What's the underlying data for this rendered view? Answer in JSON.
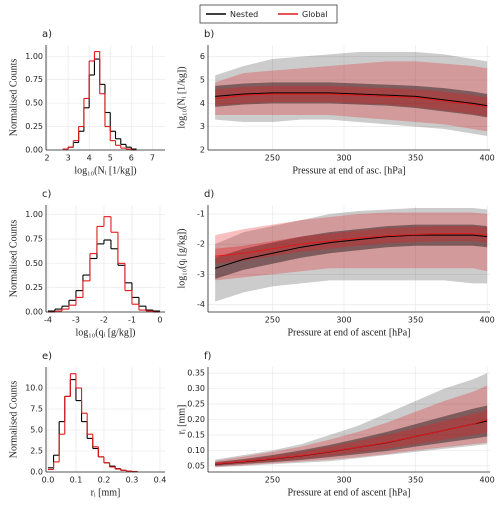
{
  "chart_data": [
    {
      "type": "histogram",
      "label": "a)",
      "xlabel": "log₁₀(Nᵢ [1/kg])",
      "ylabel": "Normalised Counts",
      "xlim": [
        1.95,
        7.6
      ],
      "ylim": [
        0,
        1.12
      ],
      "xticks": [
        2,
        3,
        4,
        5,
        6,
        7
      ],
      "yticks": [
        {
          "value": 0,
          "label": "0.00"
        },
        {
          "value": 0.25,
          "label": "0.25"
        },
        {
          "value": 0.5,
          "label": "0.50"
        },
        {
          "value": 0.75,
          "label": "0.75"
        },
        {
          "value": 1,
          "label": "1.00"
        }
      ],
      "bins": [
        2.75,
        3,
        3.25,
        3.5,
        3.75,
        4,
        4.25,
        4.5,
        4.75,
        5,
        5.25,
        5.5,
        5.75,
        6,
        6.25
      ],
      "series": [
        {
          "name": "Nested",
          "color": "#000000",
          "values": [
            0.01,
            0.03,
            0.08,
            0.2,
            0.45,
            0.8,
            0.97,
            0.7,
            0.4,
            0.2,
            0.12,
            0.06,
            0.03,
            0.01
          ]
        },
        {
          "name": "Global",
          "color": "#e3191c",
          "values": [
            0.01,
            0.03,
            0.1,
            0.25,
            0.55,
            0.95,
            1.05,
            0.6,
            0.25,
            0.1,
            0.05,
            0.02,
            0.01,
            0
          ]
        }
      ]
    },
    {
      "type": "band",
      "label": "b)",
      "xlabel": "Pressure at end of asc. [hPa]",
      "ylabel": "log₁₀(Nᵢ [1/kg])",
      "xlim": [
        205,
        402
      ],
      "ylim": [
        2,
        6.5
      ],
      "xticks": [
        250,
        300,
        350,
        400
      ],
      "yticks": [
        2,
        3,
        4,
        5,
        6
      ],
      "x": [
        210,
        230,
        250,
        270,
        290,
        310,
        330,
        350,
        370,
        390,
        400
      ],
      "series": [
        {
          "name": "Nested",
          "color": "#000000",
          "values": [
            4.3,
            4.4,
            4.45,
            4.45,
            4.45,
            4.4,
            4.35,
            4.3,
            4.15,
            4.0,
            3.9
          ],
          "inner_low": [
            3.85,
            3.95,
            4.0,
            4.0,
            4.0,
            3.95,
            3.9,
            3.8,
            3.65,
            3.5,
            3.4
          ],
          "inner_high": [
            4.75,
            4.85,
            4.9,
            4.9,
            4.9,
            4.85,
            4.8,
            4.75,
            4.65,
            4.5,
            4.4
          ],
          "outer_low": [
            3.3,
            3.2,
            3.2,
            3.3,
            3.3,
            3.2,
            3.1,
            3.0,
            2.9,
            2.7,
            2.6
          ],
          "outer_high": [
            5.2,
            5.6,
            5.9,
            6.0,
            6.1,
            6.2,
            6.2,
            6.2,
            6.1,
            5.9,
            5.8
          ]
        },
        {
          "name": "Global",
          "color": "#e3191c",
          "values": [
            4.2,
            4.35,
            4.4,
            4.4,
            4.4,
            4.35,
            4.3,
            4.25,
            4.1,
            3.95,
            3.85
          ],
          "inner_low": [
            3.9,
            4.0,
            4.05,
            4.05,
            4.05,
            4.0,
            3.95,
            3.85,
            3.7,
            3.55,
            3.45
          ],
          "inner_high": [
            4.6,
            4.7,
            4.75,
            4.75,
            4.75,
            4.7,
            4.65,
            4.6,
            4.5,
            4.35,
            4.25
          ],
          "outer_low": [
            3.5,
            3.5,
            3.5,
            3.5,
            3.5,
            3.4,
            3.3,
            3.2,
            3.1,
            2.9,
            2.8
          ],
          "outer_high": [
            4.9,
            5.3,
            5.4,
            5.5,
            5.6,
            5.7,
            5.8,
            5.8,
            5.7,
            5.6,
            5.5
          ]
        }
      ]
    },
    {
      "type": "histogram",
      "label": "c)",
      "xlabel": "log₁₀(qᵢ [g/kg])",
      "ylabel": "Normalised Counts",
      "xlim": [
        -4.07,
        0.18
      ],
      "ylim": [
        0,
        1.1
      ],
      "xticks": [
        -4,
        -3,
        -2,
        -1,
        0
      ],
      "yticks": [
        {
          "value": 0,
          "label": "0.00"
        },
        {
          "value": 0.25,
          "label": "0.25"
        },
        {
          "value": 0.5,
          "label": "0.50"
        },
        {
          "value": 0.75,
          "label": "0.75"
        },
        {
          "value": 1,
          "label": "1.00"
        }
      ],
      "bins": [
        -4,
        -3.75,
        -3.5,
        -3.25,
        -3,
        -2.75,
        -2.5,
        -2.25,
        -2,
        -1.75,
        -1.5,
        -1.25,
        -1,
        -0.75,
        -0.5,
        -0.25,
        0
      ],
      "series": [
        {
          "name": "Nested",
          "color": "#000000",
          "values": [
            0.01,
            0.03,
            0.06,
            0.12,
            0.22,
            0.38,
            0.55,
            0.7,
            0.74,
            0.65,
            0.48,
            0.3,
            0.15,
            0.06,
            0.02,
            0.01
          ]
        },
        {
          "name": "Global",
          "color": "#e3191c",
          "values": [
            0,
            0.01,
            0.03,
            0.07,
            0.15,
            0.32,
            0.6,
            0.88,
            0.98,
            0.82,
            0.5,
            0.22,
            0.08,
            0.02,
            0.01,
            0
          ]
        }
      ]
    },
    {
      "type": "band",
      "label": "d)",
      "xlabel": "Pressure at end of ascent [hPa]",
      "ylabel": "log₁₀(qᵢ [g/kg])",
      "xlim": [
        205,
        402
      ],
      "ylim": [
        -4.25,
        -0.7
      ],
      "xticks": [
        250,
        300,
        350,
        400
      ],
      "yticks": [
        -4,
        -3,
        -2,
        -1
      ],
      "x": [
        210,
        230,
        250,
        270,
        290,
        310,
        330,
        350,
        370,
        390,
        400
      ],
      "series": [
        {
          "name": "Nested",
          "color": "#000000",
          "values": [
            -2.8,
            -2.5,
            -2.3,
            -2.1,
            -1.95,
            -1.85,
            -1.75,
            -1.7,
            -1.7,
            -1.7,
            -1.75
          ],
          "inner_low": [
            -3.15,
            -2.85,
            -2.65,
            -2.45,
            -2.3,
            -2.2,
            -2.1,
            -2.05,
            -2.05,
            -2.05,
            -2.1
          ],
          "inner_high": [
            -2.45,
            -2.15,
            -1.95,
            -1.75,
            -1.6,
            -1.5,
            -1.4,
            -1.35,
            -1.35,
            -1.35,
            -1.4
          ],
          "outer_low": [
            -3.9,
            -3.6,
            -3.4,
            -3.3,
            -3.2,
            -3.2,
            -3.2,
            -3.2,
            -3.2,
            -3.3,
            -3.3
          ],
          "outer_high": [
            -2.0,
            -1.6,
            -1.4,
            -1.2,
            -1.0,
            -0.9,
            -0.85,
            -0.8,
            -0.8,
            -0.8,
            -0.85
          ]
        },
        {
          "name": "Global",
          "color": "#e3191c",
          "values": [
            -2.4,
            -2.3,
            -2.15,
            -2.0,
            -1.9,
            -1.8,
            -1.72,
            -1.68,
            -1.65,
            -1.65,
            -1.7
          ],
          "inner_low": [
            -2.65,
            -2.55,
            -2.4,
            -2.25,
            -2.15,
            -2.05,
            -1.97,
            -1.93,
            -1.9,
            -1.9,
            -1.95
          ],
          "inner_high": [
            -2.15,
            -2.05,
            -1.9,
            -1.75,
            -1.65,
            -1.55,
            -1.47,
            -1.43,
            -1.4,
            -1.4,
            -1.45
          ],
          "outer_low": [
            -3.2,
            -3.1,
            -3.0,
            -2.9,
            -2.8,
            -2.8,
            -2.8,
            -2.8,
            -2.8,
            -2.8,
            -2.9
          ],
          "outer_high": [
            -1.7,
            -1.5,
            -1.35,
            -1.2,
            -1.1,
            -1.0,
            -0.95,
            -0.95,
            -0.95,
            -0.95,
            -1.0
          ]
        }
      ]
    },
    {
      "type": "histogram",
      "label": "e)",
      "xlabel": "rᵢ [mm]",
      "ylabel": "Normalised Counts",
      "xlim": [
        -0.007,
        0.418
      ],
      "ylim": [
        0,
        12.5
      ],
      "xticks": [
        {
          "value": 0,
          "label": "0.0"
        },
        0.1,
        0.2,
        0.3,
        0.4
      ],
      "yticks": [
        {
          "value": 0,
          "label": "0.0"
        },
        2.5,
        {
          "value": 5,
          "label": "5.0"
        },
        7.5,
        {
          "value": 10,
          "label": "10.0"
        }
      ],
      "bins": [
        0,
        0.02,
        0.04,
        0.06,
        0.08,
        0.1,
        0.12,
        0.14,
        0.16,
        0.18,
        0.2,
        0.22,
        0.24,
        0.26,
        0.28,
        0.3,
        0.32
      ],
      "series": [
        {
          "name": "Nested",
          "color": "#000000",
          "values": [
            0.5,
            2,
            6,
            9,
            11,
            8.5,
            6,
            4,
            2.8,
            1.8,
            1.1,
            0.7,
            0.4,
            0.2,
            0.1,
            0.05
          ]
        },
        {
          "name": "Global",
          "color": "#e3191c",
          "values": [
            0.3,
            1.2,
            4.5,
            9,
            11.7,
            10,
            7,
            4.5,
            3,
            1.8,
            1.1,
            0.6,
            0.35,
            0.2,
            0.1,
            0.05
          ]
        }
      ]
    },
    {
      "type": "band",
      "label": "f)",
      "xlabel": "Pressure at end of ascent [hPa]",
      "ylabel": "rᵢ [mm]",
      "xlim": [
        205,
        402
      ],
      "ylim": [
        0.03,
        0.37
      ],
      "xticks": [
        250,
        300,
        350,
        400
      ],
      "yticks": [
        0.05,
        {
          "value": 0.1,
          "label": "0.10"
        },
        0.15,
        {
          "value": 0.2,
          "label": "0.20"
        },
        0.25,
        {
          "value": 0.3,
          "label": "0.30"
        },
        0.35
      ],
      "x": [
        210,
        230,
        250,
        270,
        290,
        310,
        330,
        350,
        370,
        390,
        400
      ],
      "series": [
        {
          "name": "Nested",
          "color": "#000000",
          "values": [
            0.055,
            0.063,
            0.072,
            0.082,
            0.095,
            0.11,
            0.125,
            0.145,
            0.165,
            0.185,
            0.195
          ],
          "inner_low": [
            0.05,
            0.056,
            0.062,
            0.069,
            0.078,
            0.088,
            0.098,
            0.112,
            0.125,
            0.138,
            0.145
          ],
          "inner_high": [
            0.062,
            0.072,
            0.085,
            0.1,
            0.118,
            0.138,
            0.16,
            0.185,
            0.21,
            0.235,
            0.245
          ],
          "outer_low": [
            0.045,
            0.05,
            0.055,
            0.06,
            0.065,
            0.075,
            0.085,
            0.095,
            0.105,
            0.115,
            0.12
          ],
          "outer_high": [
            0.07,
            0.085,
            0.1,
            0.12,
            0.15,
            0.18,
            0.22,
            0.26,
            0.3,
            0.33,
            0.35
          ]
        },
        {
          "name": "Global",
          "color": "#e3191c",
          "values": [
            0.056,
            0.064,
            0.073,
            0.083,
            0.096,
            0.11,
            0.126,
            0.145,
            0.165,
            0.185,
            0.2
          ],
          "inner_low": [
            0.052,
            0.058,
            0.065,
            0.072,
            0.082,
            0.093,
            0.105,
            0.12,
            0.135,
            0.15,
            0.158
          ],
          "inner_high": [
            0.06,
            0.07,
            0.082,
            0.095,
            0.112,
            0.13,
            0.15,
            0.172,
            0.195,
            0.218,
            0.23
          ],
          "outer_low": [
            0.047,
            0.052,
            0.058,
            0.064,
            0.07,
            0.078,
            0.088,
            0.1,
            0.11,
            0.12,
            0.125
          ],
          "outer_high": [
            0.066,
            0.08,
            0.095,
            0.112,
            0.135,
            0.16,
            0.19,
            0.225,
            0.26,
            0.29,
            0.31
          ]
        }
      ]
    }
  ]
}
